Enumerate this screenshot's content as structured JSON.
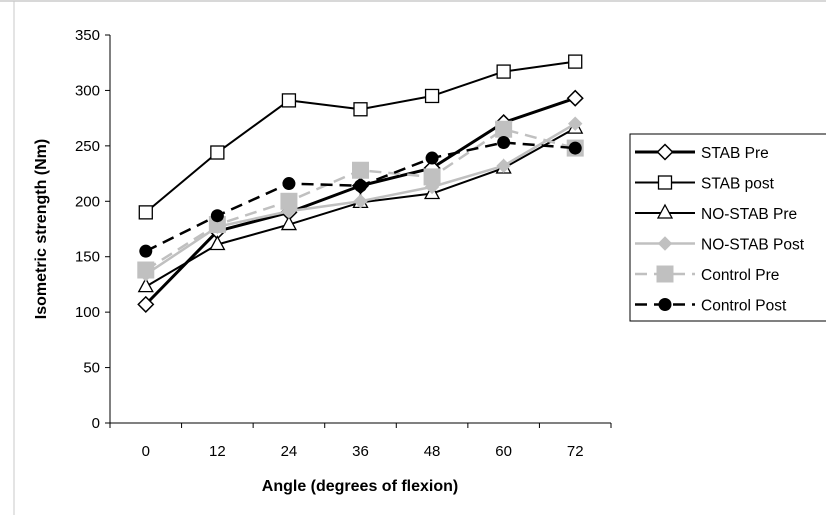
{
  "chart_data": {
    "type": "line",
    "title": "",
    "xlabel": "Angle (degrees of flexion)",
    "ylabel": "Isometric strength (Nm)",
    "categories": [
      "0",
      "12",
      "24",
      "36",
      "48",
      "60",
      "72"
    ],
    "ylim": [
      0,
      350
    ],
    "yticks": [
      "0",
      "50",
      "100",
      "150",
      "200",
      "250",
      "300",
      "350"
    ],
    "grid": false,
    "legend_position": "right",
    "series": [
      {
        "name": "STAB Pre",
        "values": [
          107,
          173,
          190,
          214,
          230,
          271,
          293
        ],
        "color": "#000000",
        "dash": "solid",
        "marker": "diamond-open",
        "width": 3
      },
      {
        "name": "STAB post",
        "values": [
          190,
          244,
          291,
          283,
          295,
          317,
          326
        ],
        "color": "#000000",
        "dash": "solid",
        "marker": "square-open",
        "width": 2
      },
      {
        "name": "NO-STAB Pre",
        "values": [
          123,
          161,
          179,
          199,
          207,
          230,
          266
        ],
        "color": "#000000",
        "dash": "solid",
        "marker": "triangle-open",
        "width": 2
      },
      {
        "name": "NO-STAB Post",
        "values": [
          134,
          177,
          191,
          200,
          213,
          232,
          270
        ],
        "color": "#c0c0c0",
        "dash": "solid",
        "marker": "diamond-filled",
        "width": 2.5
      },
      {
        "name": "Control Pre",
        "values": [
          138,
          179,
          200,
          228,
          222,
          265,
          248
        ],
        "color": "#c0c0c0",
        "dash": "dashed",
        "marker": "square-filled",
        "width": 2.5
      },
      {
        "name": "Control Post",
        "values": [
          155,
          187,
          216,
          214,
          239,
          253,
          248
        ],
        "color": "#000000",
        "dash": "dashed",
        "marker": "circle-filled",
        "width": 2.5
      }
    ]
  }
}
